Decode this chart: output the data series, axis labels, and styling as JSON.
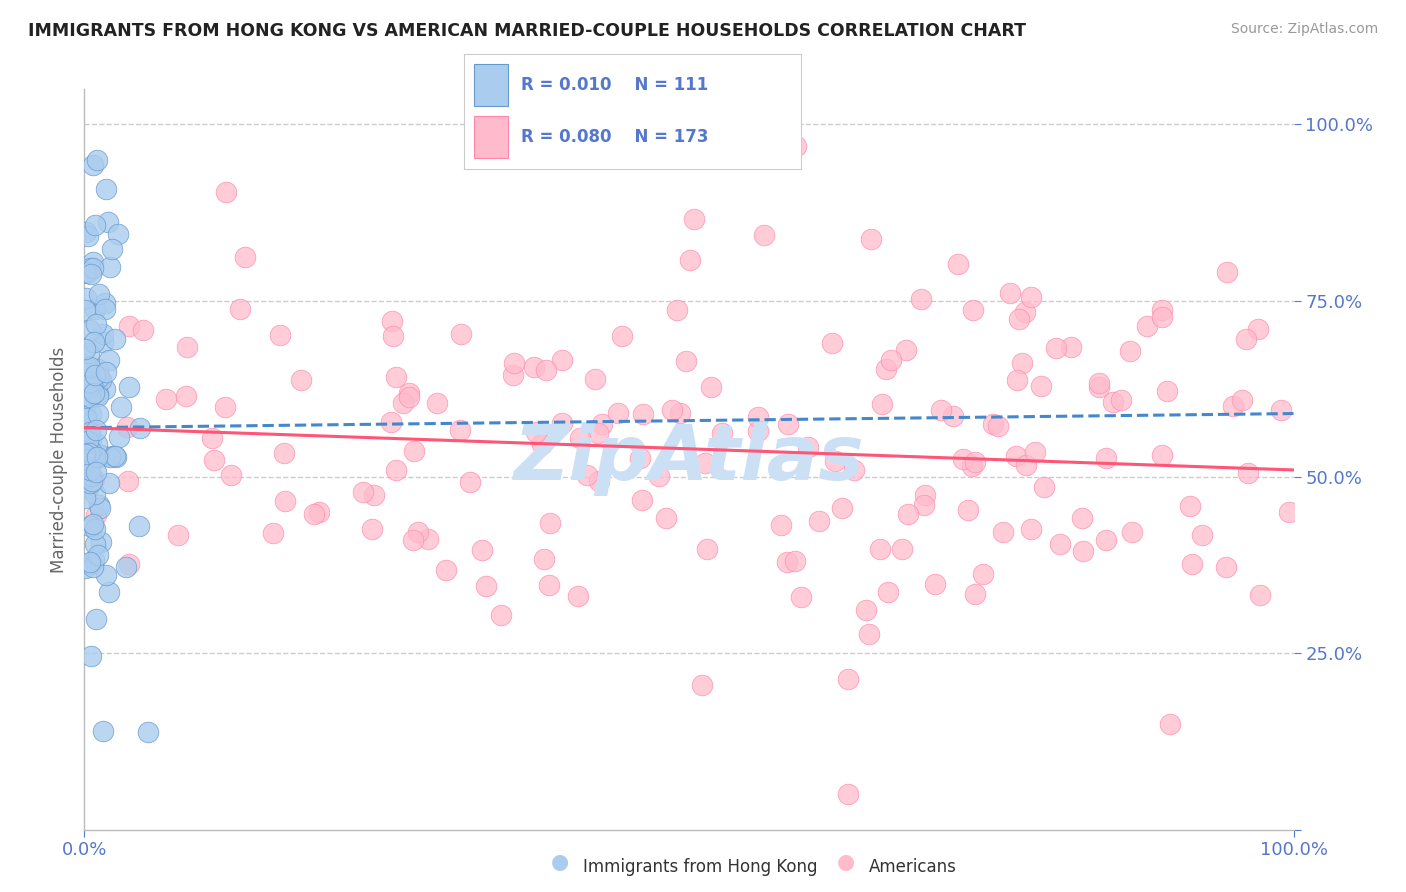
{
  "title": "IMMIGRANTS FROM HONG KONG VS AMERICAN MARRIED-COUPLE HOUSEHOLDS CORRELATION CHART",
  "source": "Source: ZipAtlas.com",
  "ylabel": "Married-couple Households",
  "color_blue_fill": "#aaccee",
  "color_blue_edge": "#6699cc",
  "color_blue_line": "#4488cc",
  "color_pink_fill": "#ffbbcc",
  "color_pink_edge": "#ff88aa",
  "color_pink_line": "#ff5577",
  "color_title": "#222222",
  "color_ticks": "#5577cc",
  "color_source": "#999999",
  "color_grid": "#cccccc",
  "color_watermark": "#cce0f5",
  "legend_blue_R": "R = 0.010",
  "legend_blue_N": "N = 111",
  "legend_pink_R": "R = 0.080",
  "legend_pink_N": "N = 173",
  "legend_label_blue": "Immigrants from Hong Kong",
  "legend_label_pink": "Americans",
  "n_blue": 111,
  "n_pink": 173,
  "xlim": [
    0,
    100
  ],
  "ylim": [
    0,
    105
  ],
  "blue_trend_start_x": 0,
  "blue_trend_start_y": 57,
  "blue_trend_end_x": 100,
  "blue_trend_end_y": 59,
  "pink_trend_start_x": 0,
  "pink_trend_start_y": 57,
  "pink_trend_end_x": 100,
  "pink_trend_end_y": 51,
  "ytick_vals": [
    0,
    25,
    50,
    75,
    100
  ],
  "ytick_labels": [
    "",
    "25.0%",
    "50.0%",
    "75.0%",
    "100.0%"
  ],
  "xtick_vals": [
    0,
    100
  ],
  "xtick_labels": [
    "0.0%",
    "100.0%"
  ],
  "watermark": "ZipAtlas"
}
